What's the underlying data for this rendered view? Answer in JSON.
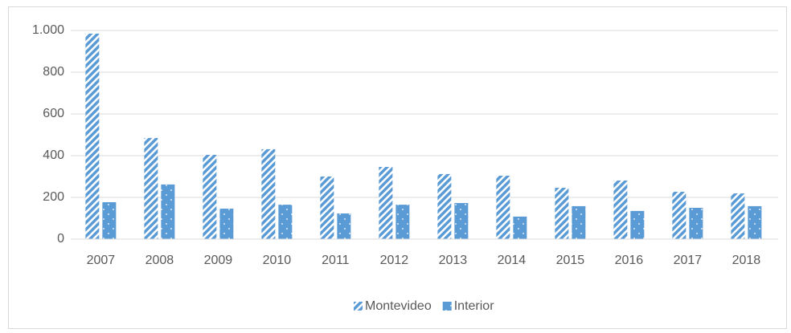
{
  "chart_data": {
    "type": "bar",
    "categories": [
      "2007",
      "2008",
      "2009",
      "2010",
      "2011",
      "2012",
      "2013",
      "2014",
      "2015",
      "2016",
      "2017",
      "2018"
    ],
    "series": [
      {
        "name": "Montevideo",
        "color": "#5b9bd5",
        "values": [
          985,
          485,
          404,
          431,
          300,
          346,
          312,
          304,
          246,
          281,
          227,
          219
        ]
      },
      {
        "name": "Interior",
        "color": "#5b9bd5",
        "values": [
          177,
          262,
          146,
          165,
          123,
          165,
          173,
          108,
          158,
          135,
          150,
          158
        ]
      }
    ],
    "ylim": [
      0,
      1000
    ],
    "yticks": [
      0,
      200,
      400,
      600,
      800,
      {
        "value": 1000,
        "label": "1.000"
      }
    ],
    "grid": true,
    "legend": "bottom"
  }
}
